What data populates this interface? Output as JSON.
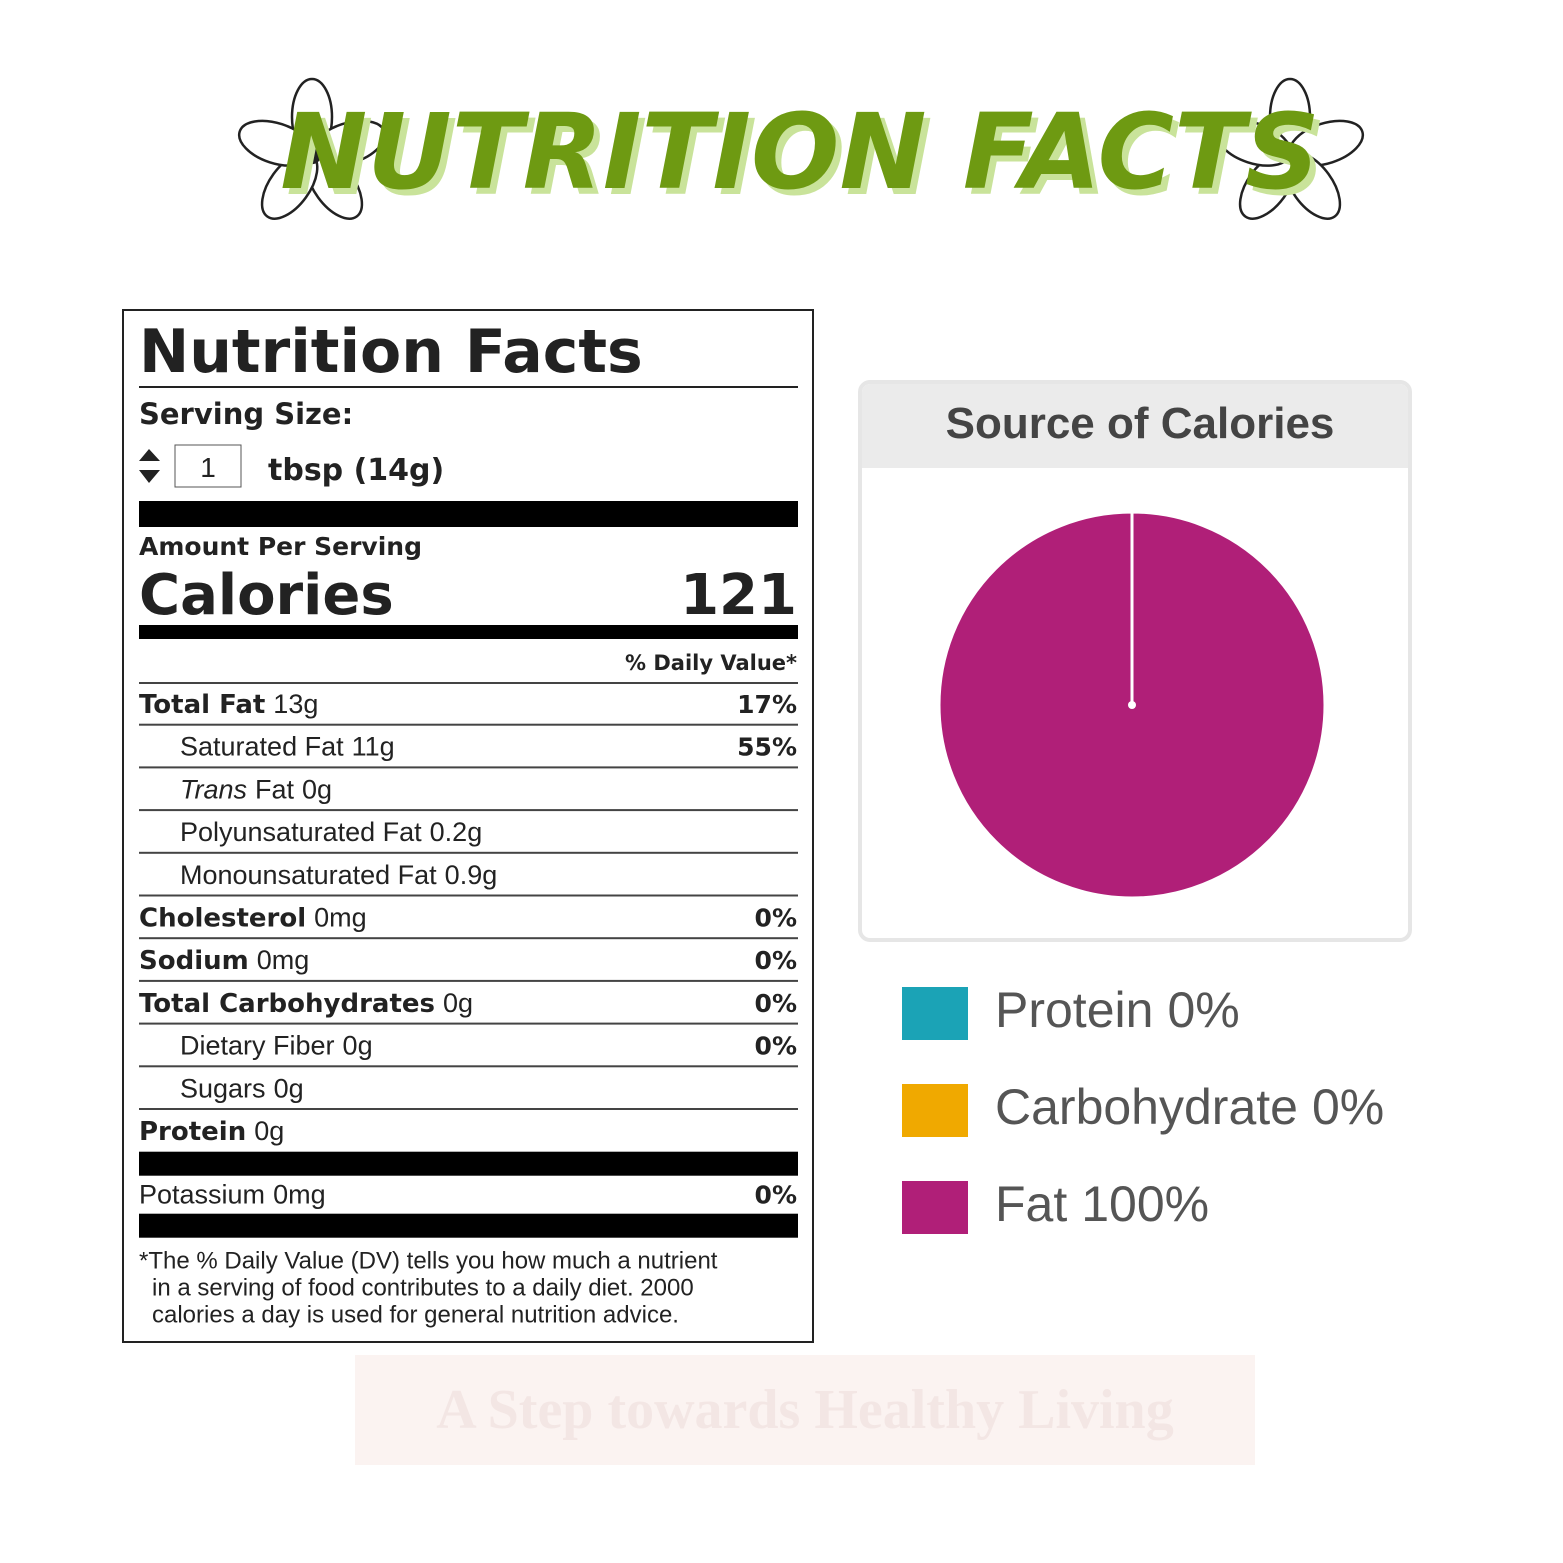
{
  "header": {
    "title": "NUTRITION FACTS"
  },
  "label": {
    "title": "Nutrition Facts",
    "serving_size_label": "Serving Size:",
    "serving_quantity": "1",
    "serving_unit": "tbsp (14g)",
    "amount_per_serving": "Amount Per Serving",
    "calories_label": "Calories",
    "calories": 121,
    "daily_value_header": "% Daily Value*",
    "rows": [
      {
        "name": "Total Fat",
        "amount": "13g",
        "dv": "17%",
        "bold": true
      },
      {
        "name": "Saturated Fat",
        "amount": "11g",
        "dv": "55%",
        "indent": true
      },
      {
        "italic": "Trans",
        "name": "Fat",
        "amount": "0g",
        "indent": true
      },
      {
        "name": "Polyunsaturated Fat",
        "amount": "0.2g",
        "indent": true
      },
      {
        "name": "Monounsaturated Fat",
        "amount": "0.9g",
        "indent": true
      },
      {
        "name": "Cholesterol",
        "amount": "0mg",
        "dv": "0%",
        "bold": true
      },
      {
        "name": "Sodium",
        "amount": "0mg",
        "dv": "0%",
        "bold": true
      },
      {
        "name": "Total Carbohydrates",
        "amount": "0g",
        "dv": "0%",
        "bold": true
      },
      {
        "name": "Dietary Fiber",
        "amount": "0g",
        "dv": "0%",
        "indent": true
      },
      {
        "name": "Sugars",
        "amount": "0g",
        "indent": true
      },
      {
        "name": "Protein",
        "amount": "0g",
        "bold": true
      }
    ],
    "potassium": {
      "name": "Potassium",
      "amount": "0mg",
      "dv": "0%"
    },
    "footnote": [
      "*The % Daily Value (DV) tells you how much a nutrient",
      "in a serving of food contributes to a daily diet. 2000",
      "calories a day is used for general nutrition advice."
    ]
  },
  "watermark": {
    "tagline": "A Step towards Healthy Living"
  },
  "chart_data": {
    "type": "pie",
    "title": "Source of Calories",
    "categories": [
      "Protein",
      "Carbohydrate",
      "Fat"
    ],
    "values": [
      0,
      0,
      100
    ],
    "value_labels": [
      "0%",
      "0%",
      "100%"
    ],
    "colors": [
      "#1ba3b6",
      "#f0a900",
      "#b01f78"
    ]
  }
}
